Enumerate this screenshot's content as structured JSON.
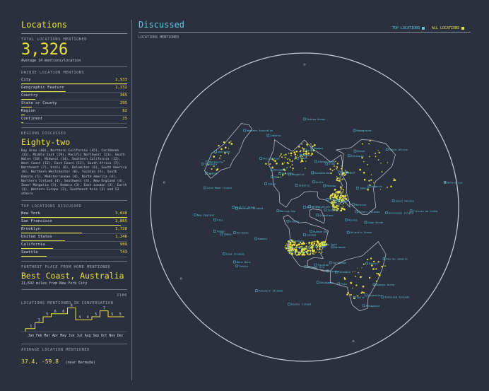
{
  "left": {
    "title": "Locations",
    "total_caption": "TOTAL LOCATIONS MENTIONED",
    "total_value": "3,326",
    "average": "Average 14 mentions/location",
    "unique_caption": "UNIQUE LOCATION MENTIONS",
    "unique": [
      {
        "label": "City",
        "value": "2,933",
        "frac": 1.0
      },
      {
        "label": "Geographic Feature",
        "value": "1,232",
        "frac": 0.42
      },
      {
        "label": "Country",
        "value": "365",
        "frac": 0.13
      },
      {
        "label": "State or County",
        "value": "295",
        "frac": 0.1
      },
      {
        "label": "Region",
        "value": "82",
        "frac": 0.03
      },
      {
        "label": "Continent",
        "value": "25",
        "frac": 0.01
      }
    ],
    "regions_caption": "REGIONS DISCUSSED",
    "regions_value": "Eighty-two",
    "regions_text": "Bay Area (60), Northern California (45), Caribbean (31), Middle East (29), Pacific Northwest (21), South Wales (18), Midwest (14), Southern California (12), West Coast (12), East Coast (11), South Africa (7), Northeast (7), Urals (6), Dolomites (6), South America (6), Northern Westchester (6), Yucatan (5), South Dakota (5), Mediterranean (4), North America (4), Northern Ireland (4), Southwest (4), New England (4), Inner Mongolia (3), Kemeia (3), East London (3), Earth (3), Western Europe (3), Southeast Asia (3) and 53 others",
    "top_caption": "TOP LOCATIONS DISCUSSED",
    "top": [
      {
        "label": "New York",
        "value": "3,048",
        "frac": 1.0
      },
      {
        "label": "San Francisco",
        "value": "2,865",
        "frac": 0.94
      },
      {
        "label": "Brooklyn",
        "value": "1,728",
        "frac": 0.57
      },
      {
        "label": "United States",
        "value": "1,246",
        "frac": 0.41
      },
      {
        "label": "California",
        "value": "909",
        "frac": 0.3
      },
      {
        "label": "Seattle",
        "value": "743",
        "frac": 0.24
      }
    ],
    "farthest_caption": "FARTHEST PLACE FROM HOME MENTIONED",
    "farthest_value": "Best Coast, Australia",
    "farthest_sub": "11,692 miles from New York City",
    "conv_caption": "LOCATIONS MENTIONED IN CONVERSATION",
    "conv_unit": "x100",
    "months": [
      "Jan",
      "Feb",
      "Mar",
      "Apr",
      "May",
      "Jun",
      "Jul",
      "Aug",
      "Sep",
      "Oct",
      "Nov",
      "Dec"
    ],
    "monthly": [
      1,
      3,
      5,
      6,
      6,
      8,
      4,
      4,
      5,
      7,
      5,
      5
    ],
    "avg_caption": "AVERAGE LOCATION MENTIONED",
    "avg_value": "37.4, -59.8",
    "avg_note": "(near Bermuda)"
  },
  "right": {
    "title": "Discussed",
    "subtitle": "LOCATIONS MENTIONED",
    "toggle_top": "TOP LOCATIONS",
    "toggle_all": "ALL LOCATIONS",
    "colors": {
      "accent": "#e9e23a",
      "cyan": "#5fc8e0",
      "bg": "#2b303f"
    }
  },
  "map_labels": [
    {
      "name": "Indian Ocean",
      "lon": 80,
      "lat": -15
    },
    {
      "name": "Western Australia",
      "lon": 118,
      "lat": -26
    },
    {
      "name": "Sydney",
      "lon": 151,
      "lat": -34
    },
    {
      "name": "Tasmania",
      "lon": 147,
      "lat": -42
    },
    {
      "name": "Adelaide",
      "lon": 138,
      "lat": -35
    },
    {
      "name": "Melbourne",
      "lon": 145,
      "lat": -38
    },
    {
      "name": "Jakarta",
      "lon": 107,
      "lat": -6
    },
    {
      "name": "Philippines",
      "lon": 122,
      "lat": 12
    },
    {
      "name": "Pacific Ocean",
      "lon": 170,
      "lat": 5
    },
    {
      "name": "Hawaii",
      "lon": -157,
      "lat": 21
    },
    {
      "name": "Kiribati",
      "lon": -170,
      "lat": 1
    },
    {
      "name": "Fiji",
      "lon": 178,
      "lat": -18
    },
    {
      "name": "New Zealand",
      "lon": 174,
      "lat": -41
    },
    {
      "name": "Samoa",
      "lon": -172,
      "lat": -14
    },
    {
      "name": "Tonga",
      "lon": -175,
      "lat": -21
    },
    {
      "name": "Marshall Islands",
      "lon": 171,
      "lat": 9
    },
    {
      "name": "Lord Howe Island",
      "lon": 159,
      "lat": -31
    },
    {
      "name": "Cook Islands",
      "lon": -160,
      "lat": -21
    },
    {
      "name": "Bora Bora",
      "lon": -152,
      "lat": -16
    },
    {
      "name": "Tahiti",
      "lon": -149,
      "lat": -17
    },
    {
      "name": "Pitcairn Islands",
      "lon": -130,
      "lat": -25
    },
    {
      "name": "Easter Island",
      "lon": -109,
      "lat": -27
    },
    {
      "name": "Bering Sea",
      "lon": 178,
      "lat": 58
    },
    {
      "name": "Alaska",
      "lon": -150,
      "lat": 64
    },
    {
      "name": "Tokyo",
      "lon": 139,
      "lat": 36
    },
    {
      "name": "Seoul",
      "lon": 127,
      "lat": 37
    },
    {
      "name": "Beijing",
      "lon": 116,
      "lat": 40
    },
    {
      "name": "Shanghai",
      "lon": 121,
      "lat": 31
    },
    {
      "name": "Mongolia",
      "lon": 104,
      "lat": 47
    },
    {
      "name": "Siberia",
      "lon": 100,
      "lat": 62
    },
    {
      "name": "India",
      "lon": 79,
      "lat": 22
    },
    {
      "name": "Mumbai",
      "lon": 73,
      "lat": 19
    },
    {
      "name": "Nepal",
      "lon": 84,
      "lat": 28
    },
    {
      "name": "Tibet",
      "lon": 88,
      "lat": 31
    },
    {
      "name": "Kazakhstan",
      "lon": 67,
      "lat": 48
    },
    {
      "name": "Afghanistan",
      "lon": 66,
      "lat": 34
    },
    {
      "name": "Iran",
      "lon": 53,
      "lat": 32
    },
    {
      "name": "Israel",
      "lon": 35,
      "lat": 31
    },
    {
      "name": "Egypt",
      "lon": 30,
      "lat": 26
    },
    {
      "name": "Kenya",
      "lon": 38,
      "lat": 0
    },
    {
      "name": "Madagascar",
      "lon": 47,
      "lat": -19
    },
    {
      "name": "South Africa",
      "lon": 25,
      "lat": -30
    },
    {
      "name": "Nigeria",
      "lon": 8,
      "lat": 9
    },
    {
      "name": "Morocco",
      "lon": -7,
      "lat": 32
    },
    {
      "name": "Sahara",
      "lon": 10,
      "lat": 23
    },
    {
      "name": "Ethiopia",
      "lon": 39,
      "lat": 9
    },
    {
      "name": "Moscow",
      "lon": 37,
      "lat": 55
    },
    {
      "name": "Urals",
      "lon": 60,
      "lat": 58
    },
    {
      "name": "Paris",
      "lon": 2,
      "lat": 49
    },
    {
      "name": "London",
      "lon": 0,
      "lat": 52
    },
    {
      "name": "Iceland",
      "lon": -18,
      "lat": 65
    },
    {
      "name": "Norway",
      "lon": 9,
      "lat": 61
    },
    {
      "name": "Greenland",
      "lon": -42,
      "lat": 72
    },
    {
      "name": "Arctic Ocean",
      "lon": 0,
      "lat": 84
    },
    {
      "name": "North Pole",
      "lon": 0,
      "lat": 90
    },
    {
      "name": "Hudson Bay",
      "lon": -85,
      "lat": 60
    },
    {
      "name": "Canada",
      "lon": -100,
      "lat": 57
    },
    {
      "name": "Seattle",
      "lon": -122,
      "lat": 47
    },
    {
      "name": "San Francisco",
      "lon": -122,
      "lat": 38
    },
    {
      "name": "Los Angeles",
      "lon": -118,
      "lat": 34
    },
    {
      "name": "Chicago",
      "lon": -88,
      "lat": 42
    },
    {
      "name": "New York",
      "lon": -74,
      "lat": 41
    },
    {
      "name": "Bermuda",
      "lon": -65,
      "lat": 32
    },
    {
      "name": "Caribbean",
      "lon": -75,
      "lat": 17
    },
    {
      "name": "Mexico City",
      "lon": -99,
      "lat": 19
    },
    {
      "name": "Yucatan",
      "lon": -89,
      "lat": 20
    },
    {
      "name": "Panama",
      "lon": -80,
      "lat": 9
    },
    {
      "name": "Colombia",
      "lon": -74,
      "lat": 4
    },
    {
      "name": "Galapagos",
      "lon": -90,
      "lat": -1
    },
    {
      "name": "Peru",
      "lon": -76,
      "lat": -10
    },
    {
      "name": "Brazil",
      "lon": -52,
      "lat": -10
    },
    {
      "name": "Rio de Janeiro",
      "lon": -43,
      "lat": -23
    },
    {
      "name": "Buenos Aires",
      "lon": -58,
      "lat": -34
    },
    {
      "name": "Chile",
      "lon": -71,
      "lat": -33
    },
    {
      "name": "Argentina",
      "lon": -65,
      "lat": -38
    },
    {
      "name": "Patagonia",
      "lon": -69,
      "lat": -47
    },
    {
      "name": "Falkland Islands",
      "lon": -59,
      "lat": -52
    },
    {
      "name": "Atlantic Ocean",
      "lon": -40,
      "lat": 30
    },
    {
      "name": "Azores",
      "lon": -27,
      "lat": 38
    },
    {
      "name": "Canary Islands",
      "lon": -15,
      "lat": 28
    },
    {
      "name": "Cape Verde",
      "lon": -24,
      "lat": 15
    },
    {
      "name": "Ascension Island",
      "lon": -14,
      "lat": -8
    },
    {
      "name": "Saint Helena",
      "lon": -6,
      "lat": -16
    },
    {
      "name": "Tristan da Cunha",
      "lon": -12,
      "lat": -37
    },
    {
      "name": "Antarctica",
      "lon": 0,
      "lat": -80
    }
  ]
}
